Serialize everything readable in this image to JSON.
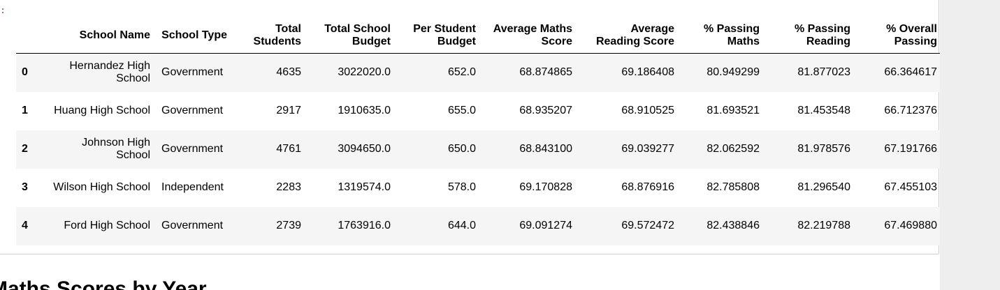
{
  "prompt_mark": ":",
  "table": {
    "columns": [
      "",
      "School Name",
      "School Type",
      "Total Students",
      "Total School Budget",
      "Per Student Budget",
      "Average Maths Score",
      "Average Reading Score",
      "% Passing Maths",
      "% Passing Reading",
      "% Overall Passing"
    ],
    "rows": [
      [
        "0",
        "Hernandez High School",
        "Government",
        "4635",
        "3022020.0",
        "652.0",
        "68.874865",
        "69.186408",
        "80.949299",
        "81.877023",
        "66.364617"
      ],
      [
        "1",
        "Huang High School",
        "Government",
        "2917",
        "1910635.0",
        "655.0",
        "68.935207",
        "68.910525",
        "81.693521",
        "81.453548",
        "66.712376"
      ],
      [
        "2",
        "Johnson High School",
        "Government",
        "4761",
        "3094650.0",
        "650.0",
        "68.843100",
        "69.039277",
        "82.062592",
        "81.978576",
        "67.191766"
      ],
      [
        "3",
        "Wilson High School",
        "Independent",
        "2283",
        "1319574.0",
        "578.0",
        "69.170828",
        "68.876916",
        "82.785808",
        "81.296540",
        "67.455103"
      ],
      [
        "4",
        "Ford High School",
        "Government",
        "2739",
        "1763916.0",
        "644.0",
        "69.091274",
        "69.572472",
        "82.438846",
        "82.219788",
        "67.469880"
      ]
    ]
  },
  "next_heading": "Maths Scores by Year"
}
